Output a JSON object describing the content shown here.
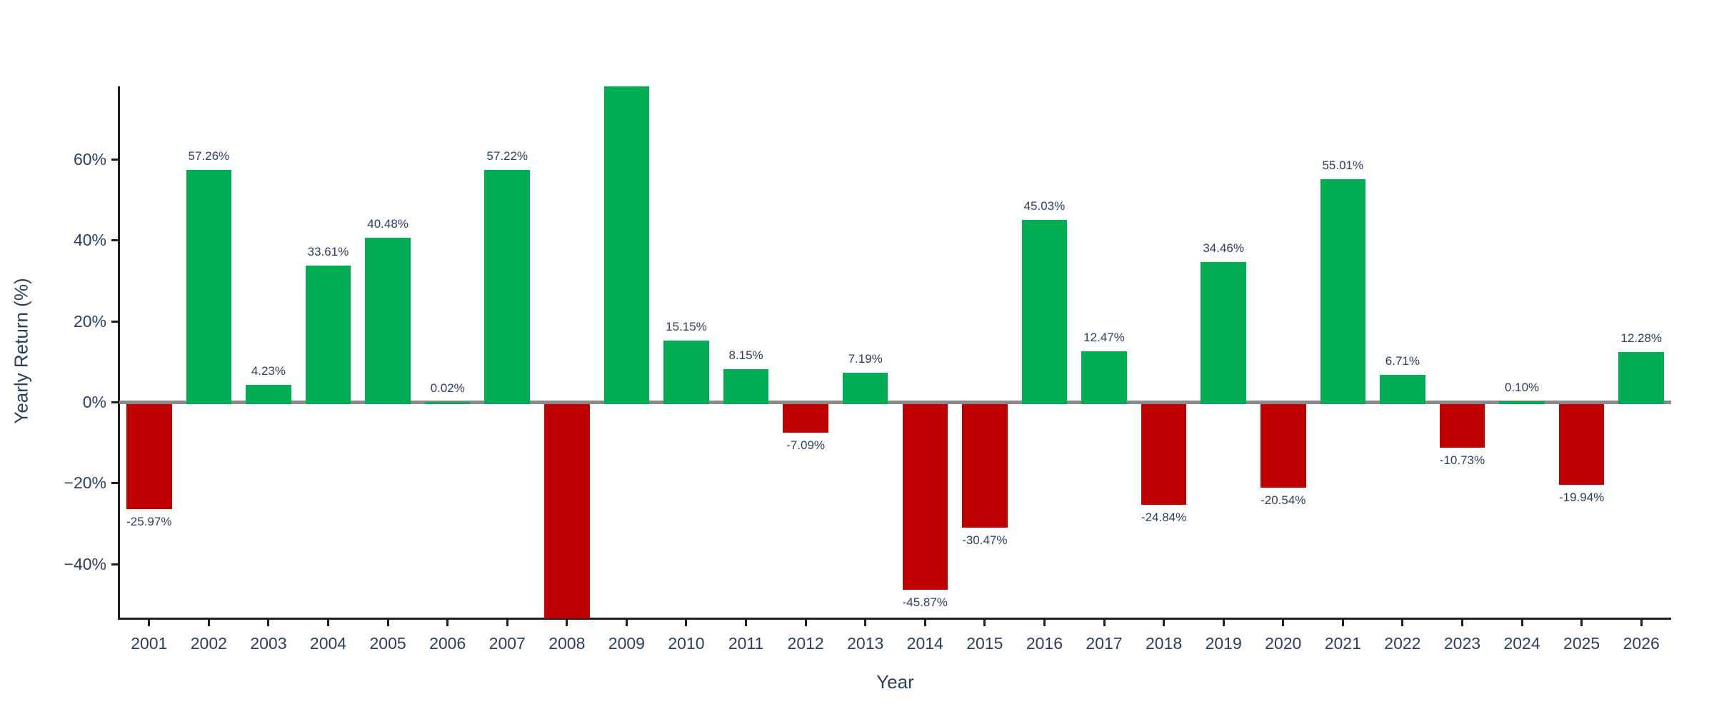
{
  "chart_data": {
    "type": "bar",
    "title": "",
    "xlabel": "Year",
    "ylabel": "Yearly Return (%)",
    "ylim": [
      -53.4,
      77.9
    ],
    "grid": false,
    "legend": "none",
    "yticks": [
      {
        "value": 60,
        "label": "60%"
      },
      {
        "value": 40,
        "label": "40%"
      },
      {
        "value": 20,
        "label": "20%"
      },
      {
        "value": 0,
        "label": "0%"
      },
      {
        "value": -20,
        "label": "−20%"
      },
      {
        "value": -40,
        "label": "−40%"
      }
    ],
    "categories": [
      "2001",
      "2002",
      "2003",
      "2004",
      "2005",
      "2006",
      "2007",
      "2008",
      "2009",
      "2010",
      "2011",
      "2012",
      "2013",
      "2014",
      "2015",
      "2016",
      "2017",
      "2018",
      "2019",
      "2020",
      "2021",
      "2022",
      "2023",
      "2024",
      "2025",
      "2026"
    ],
    "values": [
      -25.97,
      57.26,
      4.23,
      33.61,
      40.48,
      0.02,
      57.22,
      -53.4,
      77.9,
      15.15,
      8.15,
      -7.09,
      7.19,
      -45.87,
      -30.47,
      45.03,
      12.47,
      -24.84,
      34.46,
      -20.54,
      55.01,
      6.71,
      -10.73,
      0.1,
      -19.94,
      12.28
    ],
    "bar_labels": [
      "-25.97%",
      "57.26%",
      "4.23%",
      "33.61%",
      "40.48%",
      "0.02%",
      "57.22%",
      "",
      "",
      "15.15%",
      "8.15%",
      "-7.09%",
      "7.19%",
      "-45.87%",
      "-30.47%",
      "45.03%",
      "12.47%",
      "-24.84%",
      "34.46%",
      "-20.54%",
      "55.01%",
      "6.71%",
      "-10.73%",
      "0.10%",
      "-19.94%",
      "12.28%"
    ],
    "colors": {
      "positive": "#00ac54",
      "negative": "#c00000",
      "text": "#2a3f5f",
      "axis_line": "#1f1f1f",
      "zero_line": "#8a8a8a",
      "background": "#ffffff"
    }
  }
}
